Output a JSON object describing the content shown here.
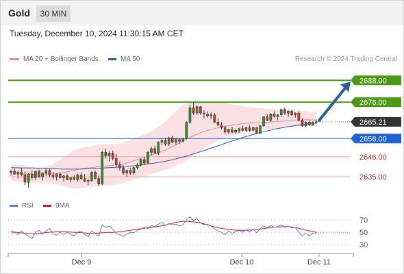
{
  "header": {
    "title": "Gold",
    "timeframe": "30 MIN"
  },
  "datetime": "Tuesday, December 10, 2024 11:30:15 AM CET",
  "legend": {
    "main": [
      {
        "label": "MA 20 + Bollinger Bands",
        "color": "#f08a8a"
      },
      {
        "label": "MA 50",
        "color": "#2c5d9e"
      }
    ],
    "rsi": [
      {
        "label": "RSI",
        "color": "#5b7fd6"
      },
      {
        "label": "9MA",
        "color": "#e01010"
      }
    ]
  },
  "research": "Research © 2024 Trading Central",
  "colors": {
    "up": "#2e8b2e",
    "down": "#c0392b",
    "green_level": "#4a9a14",
    "blue_level": "#1e63d6",
    "red_level": "#e6a0a0",
    "band": "#fadadd",
    "ma50": "#2c5d9e",
    "ma20": "#f08a8a",
    "arrow": "#2c5d9e",
    "rsi": "#5b7fd6",
    "rsi_ma": "#e01010"
  },
  "chart_data": [
    {
      "type": "candlestick",
      "title": "Gold",
      "ylim": [
        2626,
        2696
      ],
      "x_tick_labels": [
        "Dec 9",
        "Dec 10",
        "Dec 11"
      ],
      "levels": [
        {
          "label": "2688.00",
          "value": 2688.0,
          "kind": "target"
        },
        {
          "label": "2676.00",
          "value": 2676.0,
          "kind": "resistance"
        },
        {
          "label": "2665.21",
          "value": 2665.21,
          "kind": "last"
        },
        {
          "label": "2656.00",
          "value": 2656.0,
          "kind": "pivot"
        },
        {
          "label": "2646.00",
          "value": 2646.0,
          "kind": "support"
        },
        {
          "label": "2635.00",
          "value": 2635.0,
          "kind": "support"
        }
      ],
      "candles": [
        [
          2637.5,
          2639.0,
          2635.5,
          2638.0
        ],
        [
          2638.0,
          2639.5,
          2636.0,
          2636.5
        ],
        [
          2636.5,
          2638.5,
          2634.0,
          2637.5
        ],
        [
          2637.5,
          2640.0,
          2635.5,
          2636.0
        ],
        [
          2636.0,
          2638.0,
          2630.5,
          2632.0
        ],
        [
          2632.0,
          2637.0,
          2629.0,
          2636.5
        ],
        [
          2636.5,
          2638.5,
          2633.5,
          2634.5
        ],
        [
          2634.5,
          2638.5,
          2633.0,
          2638.0
        ],
        [
          2638.0,
          2639.0,
          2634.5,
          2635.0
        ],
        [
          2635.0,
          2637.5,
          2633.0,
          2637.0
        ],
        [
          2637.0,
          2639.5,
          2635.5,
          2638.5
        ],
        [
          2638.5,
          2639.5,
          2635.0,
          2636.0
        ],
        [
          2636.0,
          2637.5,
          2633.5,
          2635.0
        ],
        [
          2635.0,
          2637.0,
          2633.0,
          2636.5
        ],
        [
          2636.5,
          2637.5,
          2634.0,
          2634.5
        ],
        [
          2634.5,
          2636.0,
          2632.5,
          2635.5
        ],
        [
          2635.5,
          2636.5,
          2633.0,
          2633.5
        ],
        [
          2633.5,
          2635.0,
          2632.0,
          2634.5
        ],
        [
          2634.5,
          2636.0,
          2633.0,
          2633.5
        ],
        [
          2633.5,
          2636.5,
          2632.5,
          2636.0
        ],
        [
          2636.0,
          2637.5,
          2633.5,
          2634.0
        ],
        [
          2634.0,
          2636.5,
          2632.0,
          2632.5
        ],
        [
          2632.5,
          2634.0,
          2630.5,
          2633.0
        ],
        [
          2633.0,
          2638.0,
          2632.0,
          2637.5
        ],
        [
          2637.5,
          2638.5,
          2633.5,
          2634.0
        ],
        [
          2634.0,
          2635.5,
          2630.0,
          2631.0
        ],
        [
          2631.0,
          2649.0,
          2630.5,
          2648.5
        ],
        [
          2648.5,
          2650.5,
          2645.0,
          2646.5
        ],
        [
          2646.5,
          2649.0,
          2643.5,
          2648.0
        ],
        [
          2648.0,
          2649.5,
          2644.0,
          2645.0
        ],
        [
          2645.0,
          2647.5,
          2640.5,
          2641.5
        ],
        [
          2641.5,
          2643.5,
          2638.5,
          2640.0
        ],
        [
          2640.0,
          2641.5,
          2636.0,
          2637.0
        ],
        [
          2637.0,
          2639.0,
          2635.0,
          2638.5
        ],
        [
          2638.5,
          2640.0,
          2636.0,
          2637.0
        ],
        [
          2637.0,
          2640.5,
          2636.0,
          2640.0
        ],
        [
          2640.0,
          2642.5,
          2639.0,
          2641.5
        ],
        [
          2641.5,
          2645.0,
          2640.5,
          2644.5
        ],
        [
          2644.5,
          2646.0,
          2641.5,
          2642.5
        ],
        [
          2642.5,
          2649.0,
          2642.0,
          2648.5
        ],
        [
          2648.5,
          2651.5,
          2646.5,
          2650.5
        ],
        [
          2650.5,
          2652.0,
          2647.5,
          2648.0
        ],
        [
          2648.0,
          2654.5,
          2647.0,
          2654.0
        ],
        [
          2654.0,
          2656.0,
          2652.5,
          2655.0
        ],
        [
          2655.0,
          2656.5,
          2652.0,
          2653.0
        ],
        [
          2653.0,
          2657.0,
          2652.0,
          2656.5
        ],
        [
          2656.5,
          2657.5,
          2653.5,
          2654.0
        ],
        [
          2654.0,
          2656.5,
          2652.5,
          2655.5
        ],
        [
          2655.5,
          2656.5,
          2653.0,
          2654.5
        ],
        [
          2654.5,
          2656.5,
          2654.0,
          2656.0
        ],
        [
          2656.0,
          2665.5,
          2655.5,
          2665.0
        ],
        [
          2665.0,
          2674.5,
          2664.0,
          2673.0
        ],
        [
          2673.0,
          2676.0,
          2669.0,
          2670.0
        ],
        [
          2670.0,
          2674.5,
          2669.0,
          2673.5
        ],
        [
          2673.5,
          2674.0,
          2669.0,
          2670.0
        ],
        [
          2670.0,
          2671.5,
          2667.0,
          2669.5
        ],
        [
          2669.5,
          2671.0,
          2667.5,
          2668.5
        ],
        [
          2668.5,
          2670.5,
          2666.5,
          2669.0
        ],
        [
          2669.0,
          2670.0,
          2664.5,
          2665.0
        ],
        [
          2665.0,
          2667.0,
          2663.0,
          2663.5
        ],
        [
          2663.5,
          2665.0,
          2661.0,
          2662.0
        ],
        [
          2662.0,
          2663.0,
          2658.5,
          2659.5
        ],
        [
          2659.5,
          2661.5,
          2658.5,
          2661.0
        ],
        [
          2661.0,
          2662.5,
          2659.0,
          2659.5
        ],
        [
          2659.5,
          2661.5,
          2658.5,
          2660.5
        ],
        [
          2660.5,
          2662.0,
          2659.0,
          2661.5
        ],
        [
          2661.5,
          2663.0,
          2660.0,
          2660.5
        ],
        [
          2660.5,
          2662.5,
          2659.5,
          2662.0
        ],
        [
          2662.0,
          2663.0,
          2659.5,
          2660.5
        ],
        [
          2660.5,
          2662.5,
          2660.0,
          2662.0
        ],
        [
          2662.0,
          2662.5,
          2658.5,
          2659.0
        ],
        [
          2659.0,
          2663.5,
          2658.5,
          2663.0
        ],
        [
          2663.0,
          2668.5,
          2662.5,
          2668.0
        ],
        [
          2668.0,
          2669.5,
          2665.5,
          2666.0
        ],
        [
          2666.0,
          2670.0,
          2665.0,
          2669.5
        ],
        [
          2669.5,
          2671.0,
          2667.5,
          2668.0
        ],
        [
          2668.0,
          2669.5,
          2666.0,
          2669.0
        ],
        [
          2669.0,
          2672.5,
          2668.0,
          2672.0
        ],
        [
          2672.0,
          2673.0,
          2669.0,
          2670.0
        ],
        [
          2670.0,
          2671.5,
          2668.0,
          2671.0
        ],
        [
          2671.0,
          2672.0,
          2668.5,
          2669.0
        ],
        [
          2669.0,
          2670.5,
          2667.5,
          2670.0
        ],
        [
          2670.0,
          2671.0,
          2665.5,
          2666.0
        ],
        [
          2666.0,
          2667.0,
          2662.5,
          2663.0
        ],
        [
          2663.0,
          2665.5,
          2662.5,
          2665.0
        ],
        [
          2665.0,
          2666.0,
          2663.0,
          2663.5
        ],
        [
          2663.5,
          2665.5,
          2663.0,
          2665.0
        ],
        [
          2665.0,
          2666.5,
          2664.0,
          2665.21
        ]
      ],
      "ma20": [
        2637.2,
        2636.6,
        2636.2,
        2636.4,
        2636.6,
        2637.2,
        2638.3,
        2639.5,
        2640.1,
        2640.8,
        2641.3,
        2642.0,
        2643.7,
        2645.5,
        2647.4,
        2649.3,
        2651.9,
        2655.0,
        2657.8,
        2660.0,
        2661.5,
        2662.8,
        2663.6,
        2664.3,
        2664.6,
        2664.9,
        2665.3,
        2665.7,
        2666.1,
        2666.4,
        2666.2
      ],
      "bb_upper": [
        2641.5,
        2641.5,
        2640.5,
        2640.5,
        2641.5,
        2645.0,
        2649.0,
        2651.0,
        2652.0,
        2653.0,
        2653.0,
        2653.5,
        2656.0,
        2658.0,
        2660.5,
        2664.5,
        2670.0,
        2675.0,
        2676.0,
        2676.5,
        2676.5,
        2675.5,
        2674.5,
        2673.5,
        2673.0,
        2672.5,
        2672.0,
        2672.0,
        2671.5,
        2671.0,
        2670.5
      ],
      "bb_lower": [
        2633.0,
        2632.0,
        2631.5,
        2632.0,
        2631.5,
        2630.0,
        2628.5,
        2629.0,
        2629.5,
        2630.0,
        2630.5,
        2631.5,
        2633.5,
        2635.0,
        2637.0,
        2638.5,
        2640.5,
        2643.0,
        2647.0,
        2651.0,
        2654.0,
        2656.5,
        2658.0,
        2659.5,
        2660.5,
        2661.0,
        2661.5,
        2662.0,
        2662.5,
        2663.0,
        2663.0
      ],
      "ma50": [
        2640.0,
        2639.9,
        2639.8,
        2639.7,
        2639.5,
        2639.3,
        2639.2,
        2639.3,
        2639.5,
        2639.8,
        2640.1,
        2640.5,
        2641.0,
        2641.6,
        2642.4,
        2643.3,
        2644.5,
        2646.0,
        2647.7,
        2649.5,
        2651.4,
        2653.3,
        2655.2,
        2657.0,
        2658.6,
        2660.0,
        2661.3,
        2662.3,
        2663.2,
        2663.9,
        2664.6
      ],
      "arrow": {
        "from": 2665.21,
        "to": 2688.0
      }
    },
    {
      "type": "line",
      "title": "RSI",
      "ylim": [
        20,
        80
      ],
      "y_ticks": [
        "70",
        "50",
        "30"
      ],
      "series": [
        {
          "name": "RSI",
          "values": [
            48,
            50,
            46,
            52,
            47,
            44,
            40,
            50,
            53,
            47,
            52,
            56,
            48,
            45,
            50,
            46,
            50,
            47,
            44,
            50,
            52,
            46,
            43,
            52,
            48,
            44,
            62,
            58,
            60,
            55,
            48,
            46,
            43,
            47,
            50,
            49,
            53,
            55,
            58,
            56,
            61,
            59,
            63,
            66,
            61,
            64,
            62,
            63,
            60,
            62,
            70,
            75,
            69,
            72,
            65,
            62,
            63,
            60,
            55,
            52,
            50,
            46,
            52,
            48,
            51,
            53,
            50,
            54,
            50,
            55,
            49,
            56,
            60,
            57,
            61,
            58,
            59,
            62,
            58,
            60,
            57,
            58,
            50,
            44,
            48,
            44,
            48,
            49
          ]
        },
        {
          "name": "9MA",
          "values": [
            51,
            50,
            49,
            48,
            47.5,
            47.5,
            48,
            49,
            50,
            50.5,
            51,
            51,
            50.5,
            50,
            49.5,
            49,
            48.5,
            48,
            48.5,
            49,
            49.5,
            49.5,
            50,
            51,
            52,
            53,
            54.5,
            55.5,
            56.5,
            57.5,
            58.5,
            59.5,
            61,
            63,
            65,
            66.5,
            67.5,
            67.5,
            67,
            66,
            64.5,
            62.5,
            60,
            58,
            56.5,
            55,
            54,
            53.5,
            53,
            53,
            53.5,
            54,
            55,
            56,
            57,
            58,
            58.5,
            59,
            59,
            58.5,
            57,
            55,
            53,
            51.5,
            50
          ]
        }
      ]
    }
  ]
}
